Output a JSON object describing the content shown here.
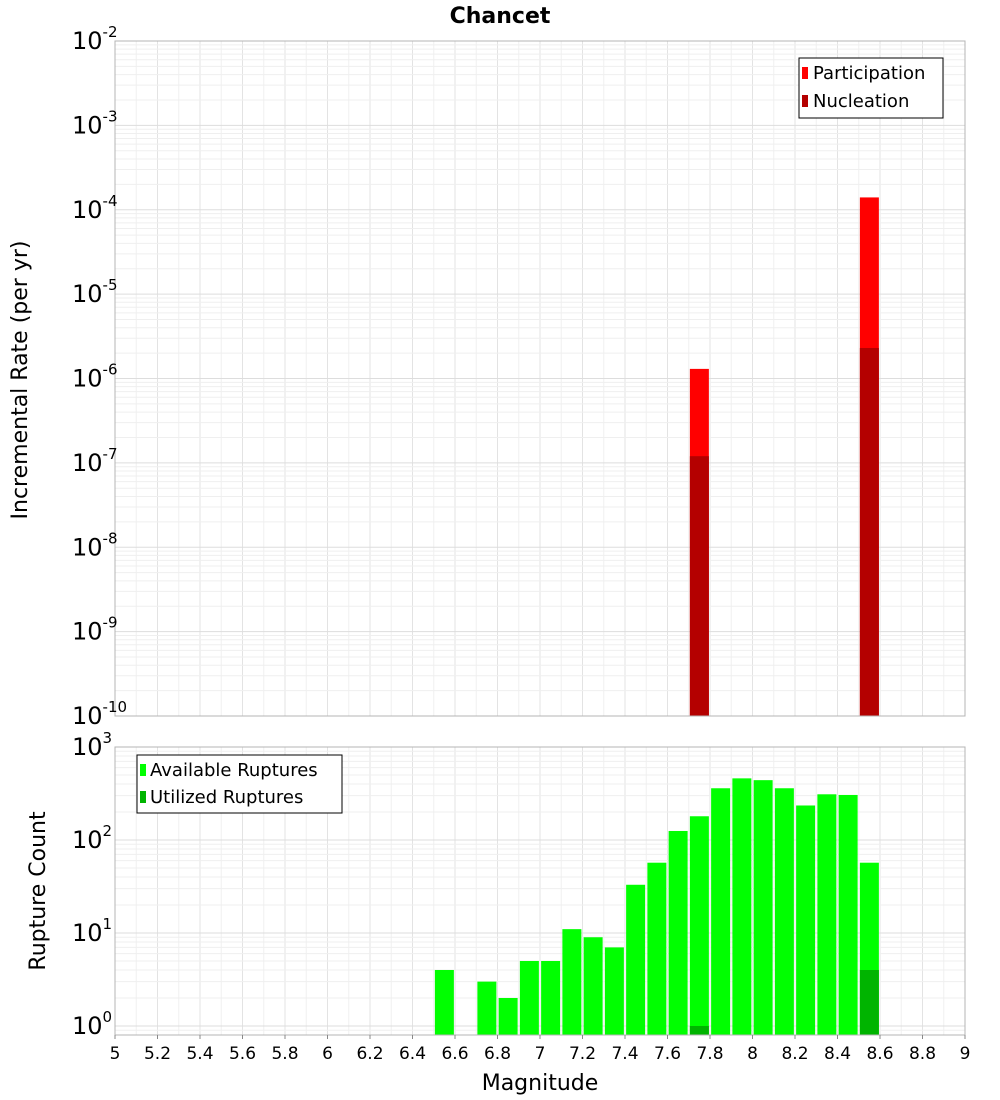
{
  "chart_data": [
    {
      "type": "bar",
      "title": "Chancet",
      "ylabel": "Incremental Rate (per yr)",
      "xlabel": "",
      "xlim": [
        5,
        9
      ],
      "ylim": [
        1e-10,
        0.01
      ],
      "yscale": "log",
      "y_tick_exponents": [
        "-2",
        "-3",
        "-4",
        "-5",
        "-6",
        "-7",
        "-8",
        "-9",
        "-10"
      ],
      "grid": true,
      "legend_position": "top-right",
      "series": [
        {
          "name": "Participation",
          "color": "#ff0000",
          "points": [
            {
              "x": 7.75,
              "y": 1.3e-06
            },
            {
              "x": 8.55,
              "y": 0.00014
            }
          ]
        },
        {
          "name": "Nucleation",
          "color": "#b40000",
          "points": [
            {
              "x": 7.75,
              "y": 1.2e-07
            },
            {
              "x": 8.55,
              "y": 2.3e-06
            }
          ]
        }
      ]
    },
    {
      "type": "bar",
      "title": "",
      "xlabel": "Magnitude",
      "ylabel": "Rupture Count",
      "xlim": [
        5,
        9
      ],
      "ylim": [
        0.8,
        1000
      ],
      "yscale": "log",
      "y_tick_exponents": [
        "3",
        "2",
        "1",
        "0"
      ],
      "x_tick_labels": [
        "5",
        "5.2",
        "5.4",
        "5.6",
        "5.8",
        "6",
        "6.2",
        "6.4",
        "6.6",
        "6.8",
        "7",
        "7.2",
        "7.4",
        "7.6",
        "7.8",
        "8",
        "8.2",
        "8.4",
        "8.6",
        "8.8",
        "9"
      ],
      "grid": true,
      "legend_position": "top-left",
      "series": [
        {
          "name": "Available Ruptures",
          "color": "#00ff00",
          "points": [
            {
              "x": 6.55,
              "y": 4
            },
            {
              "x": 6.75,
              "y": 3
            },
            {
              "x": 6.85,
              "y": 2
            },
            {
              "x": 6.95,
              "y": 5
            },
            {
              "x": 7.05,
              "y": 5
            },
            {
              "x": 7.15,
              "y": 11
            },
            {
              "x": 7.25,
              "y": 9
            },
            {
              "x": 7.35,
              "y": 7
            },
            {
              "x": 7.45,
              "y": 33
            },
            {
              "x": 7.55,
              "y": 57
            },
            {
              "x": 7.65,
              "y": 125
            },
            {
              "x": 7.75,
              "y": 180
            },
            {
              "x": 7.85,
              "y": 360
            },
            {
              "x": 7.95,
              "y": 460
            },
            {
              "x": 8.05,
              "y": 440
            },
            {
              "x": 8.15,
              "y": 360
            },
            {
              "x": 8.25,
              "y": 235
            },
            {
              "x": 8.35,
              "y": 310
            },
            {
              "x": 8.45,
              "y": 305
            },
            {
              "x": 8.55,
              "y": 57
            }
          ]
        },
        {
          "name": "Utilized Ruptures",
          "color": "#00b400",
          "points": [
            {
              "x": 7.75,
              "y": 1
            },
            {
              "x": 8.55,
              "y": 4
            }
          ]
        }
      ]
    }
  ]
}
